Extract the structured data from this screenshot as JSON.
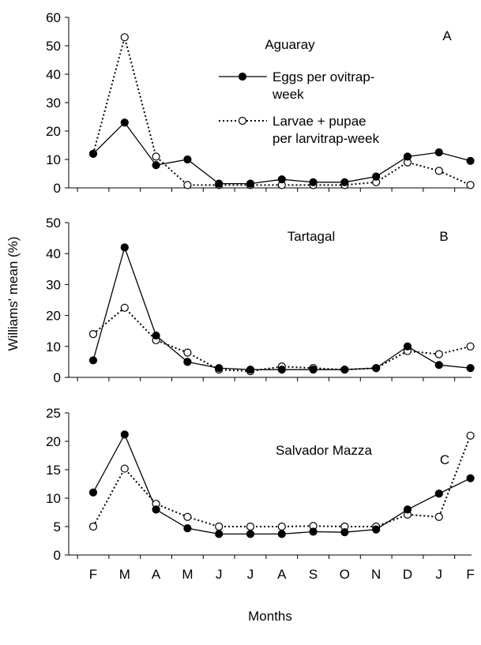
{
  "figure": {
    "ylabel": "Williams' mean (%)",
    "xlabel": "Months"
  },
  "chart_data": [
    {
      "type": "line",
      "panel_label": "A",
      "site_label": "Aguaray",
      "categories": [
        "F",
        "M",
        "A",
        "M",
        "J",
        "J",
        "A",
        "S",
        "O",
        "N",
        "D",
        "J",
        "F"
      ],
      "ylim": [
        0,
        60
      ],
      "yticks": [
        0,
        10,
        20,
        30,
        40,
        50,
        60
      ],
      "show_x_tick_labels": false,
      "legend": {
        "placement": "top-center",
        "entries": [
          {
            "series": 0,
            "lines": [
              "Eggs per ovitrap-",
              "week"
            ]
          },
          {
            "series": 1,
            "lines": [
              "Larvae + pupae",
              "per larvitrap-week"
            ]
          }
        ]
      },
      "series": [
        {
          "name": "Eggs per ovitrap-week",
          "style": "solid",
          "marker": "filled-circle",
          "values": [
            12,
            23,
            8,
            10,
            1.5,
            1.5,
            3,
            2,
            2,
            4,
            11,
            12.5,
            9.5
          ]
        },
        {
          "name": "Larvae + pupae per larvitrap-week",
          "style": "dotted",
          "marker": "open-circle",
          "values": [
            12,
            53,
            11,
            1,
            1,
            1,
            1,
            1,
            1,
            2,
            9,
            6,
            1
          ]
        }
      ]
    },
    {
      "type": "line",
      "panel_label": "B",
      "site_label": "Tartagal",
      "categories": [
        "F",
        "M",
        "A",
        "M",
        "J",
        "J",
        "A",
        "S",
        "O",
        "N",
        "D",
        "J",
        "F"
      ],
      "ylim": [
        0,
        50
      ],
      "yticks": [
        0,
        10,
        20,
        30,
        40,
        50
      ],
      "show_x_tick_labels": false,
      "series": [
        {
          "name": "Eggs per ovitrap-week",
          "style": "solid",
          "marker": "filled-circle",
          "values": [
            5.5,
            42,
            13.5,
            5,
            3,
            2.5,
            2.5,
            2.5,
            2.5,
            3,
            10,
            4,
            3
          ]
        },
        {
          "name": "Larvae + pupae per larvitrap-week",
          "style": "dotted",
          "marker": "open-circle",
          "values": [
            14,
            22.5,
            12,
            8,
            2.5,
            2,
            3.5,
            3,
            2.5,
            3,
            8.5,
            7.5,
            10
          ]
        }
      ]
    },
    {
      "type": "line",
      "panel_label": "C",
      "site_label": "Salvador Mazza",
      "categories": [
        "F",
        "M",
        "A",
        "M",
        "J",
        "J",
        "A",
        "S",
        "O",
        "N",
        "D",
        "J",
        "F"
      ],
      "ylim": [
        0,
        25
      ],
      "yticks": [
        0,
        5,
        10,
        15,
        20,
        25
      ],
      "show_x_tick_labels": true,
      "series": [
        {
          "name": "Eggs per ovitrap-week",
          "style": "solid",
          "marker": "filled-circle",
          "values": [
            11,
            21.2,
            8,
            4.7,
            3.7,
            3.7,
            3.7,
            4.1,
            4,
            4.5,
            8,
            10.8,
            13.5
          ]
        },
        {
          "name": "Larvae + pupae per larvitrap-week",
          "style": "dotted",
          "marker": "open-circle",
          "values": [
            5,
            15.2,
            9,
            6.7,
            5,
            5,
            5,
            5.1,
            5,
            5,
            7.1,
            6.7,
            21
          ]
        }
      ]
    }
  ]
}
